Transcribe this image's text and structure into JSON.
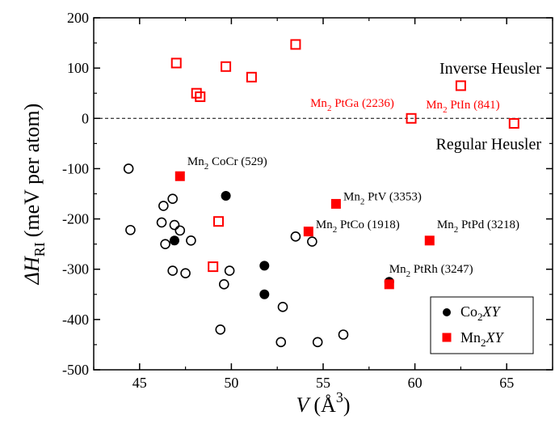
{
  "chart_data": {
    "type": "scatter",
    "xlabel_main": "V",
    "xlabel_unit": "(Å",
    "xlabel_sup": "3",
    "xlabel_close": ")",
    "ylabel_main": "ΔH",
    "ylabel_sub": "RI",
    "ylabel_unit": "(meV per atom)",
    "xlim": [
      42.5,
      67.5
    ],
    "ylim": [
      -500,
      200
    ],
    "xticks": [
      "45",
      "50",
      "55",
      "60",
      "65"
    ],
    "yticks": [
      "200",
      "100",
      "0",
      "-100",
      "-200",
      "-300",
      "-400",
      "-500"
    ],
    "reference_line": 0,
    "region_labels": {
      "inverse": "Inverse Heusler",
      "regular": "Regular Heusler"
    },
    "legend": {
      "position": "bottom-right",
      "co": {
        "base": "Co",
        "sub": "2",
        "rest": "XY"
      },
      "mn": {
        "base": "Mn",
        "sub": "2",
        "rest": "XY"
      }
    },
    "series": [
      {
        "name": "Co2XY",
        "marker": "circle",
        "color": "#000000",
        "filled": [
          [
            46.9,
            -243
          ],
          [
            49.7,
            -154
          ],
          [
            51.8,
            -293
          ],
          [
            51.8,
            -350
          ],
          [
            58.6,
            -325
          ]
        ],
        "open": [
          [
            44.4,
            -100
          ],
          [
            44.5,
            -222
          ],
          [
            46.2,
            -207
          ],
          [
            46.3,
            -174
          ],
          [
            46.4,
            -250
          ],
          [
            46.8,
            -160
          ],
          [
            46.8,
            -303
          ],
          [
            46.9,
            -212
          ],
          [
            47.2,
            -223
          ],
          [
            47.5,
            -308
          ],
          [
            47.8,
            -243
          ],
          [
            49.4,
            -420
          ],
          [
            49.6,
            -330
          ],
          [
            49.9,
            -303
          ],
          [
            52.8,
            -375
          ],
          [
            52.7,
            -445
          ],
          [
            53.5,
            -235
          ],
          [
            54.4,
            -245
          ],
          [
            54.7,
            -445
          ],
          [
            56.1,
            -430
          ]
        ]
      },
      {
        "name": "Mn2XY",
        "marker": "square",
        "color": "#ff0000",
        "filled": [
          [
            47.2,
            -115
          ],
          [
            54.2,
            -225
          ],
          [
            55.7,
            -170
          ],
          [
            58.6,
            -330
          ],
          [
            60.8,
            -243
          ]
        ],
        "open": [
          [
            47.0,
            110
          ],
          [
            48.1,
            50
          ],
          [
            48.3,
            43
          ],
          [
            49.0,
            -295
          ],
          [
            49.3,
            -205
          ],
          [
            49.7,
            103
          ],
          [
            51.1,
            82
          ],
          [
            53.5,
            147
          ],
          [
            59.8,
            0
          ],
          [
            62.5,
            65
          ],
          [
            65.4,
            -10
          ]
        ]
      }
    ],
    "annotations": [
      {
        "base": "Mn",
        "sub": "2",
        "rest": "CoCr (529)",
        "color": "black",
        "x": 47.6,
        "y": -93
      },
      {
        "base": "Mn",
        "sub": "2",
        "rest": "PtV (3353)",
        "color": "black",
        "x": 56.1,
        "y": -163
      },
      {
        "base": "Mn",
        "sub": "2",
        "rest": "PtCo (1918)",
        "color": "black",
        "x": 54.6,
        "y": -218
      },
      {
        "base": "Mn",
        "sub": "2",
        "rest": "PtPd (3218)",
        "color": "black",
        "x": 61.2,
        "y": -218
      },
      {
        "base": "Mn",
        "sub": "2",
        "rest": "PtRh (3247)",
        "color": "black",
        "x": 58.6,
        "y": -307
      },
      {
        "base": "Mn",
        "sub": "2",
        "rest": "PtGa (2236)",
        "color": "red",
        "x": 54.3,
        "y": 23
      },
      {
        "base": "Mn",
        "sub": "2",
        "rest": "PtIn (841)",
        "color": "red",
        "x": 60.6,
        "y": 20
      }
    ]
  }
}
